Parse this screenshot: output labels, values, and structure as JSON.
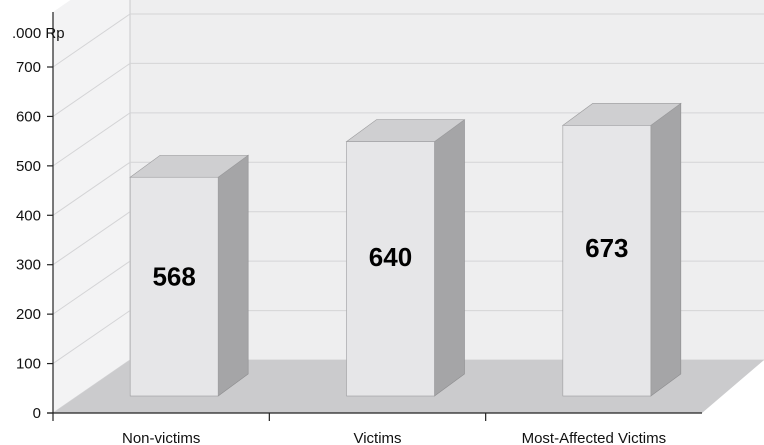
{
  "chart_data": {
    "type": "bar",
    "title": "",
    "xlabel": "",
    "ylabel": ".000 Rp",
    "categories": [
      "Non-victims",
      "Victims",
      "Most-Affected Victims"
    ],
    "values": [
      568,
      640,
      673
    ],
    "data_labels": [
      "568",
      "640",
      "673"
    ],
    "ylim": [
      0,
      700
    ],
    "yticks": [
      0,
      100,
      200,
      300,
      400,
      500,
      600,
      700
    ],
    "grid": true,
    "style": "3d",
    "colors": {
      "bar_front": "#e6e6e8",
      "bar_side": "#a5a5a7",
      "bar_top": "#cfcfd1",
      "floor": "#cbcbcd",
      "back_wall": "#eeeeef",
      "side_wall": "#f3f3f4",
      "grid": "#d4d4d6"
    }
  }
}
